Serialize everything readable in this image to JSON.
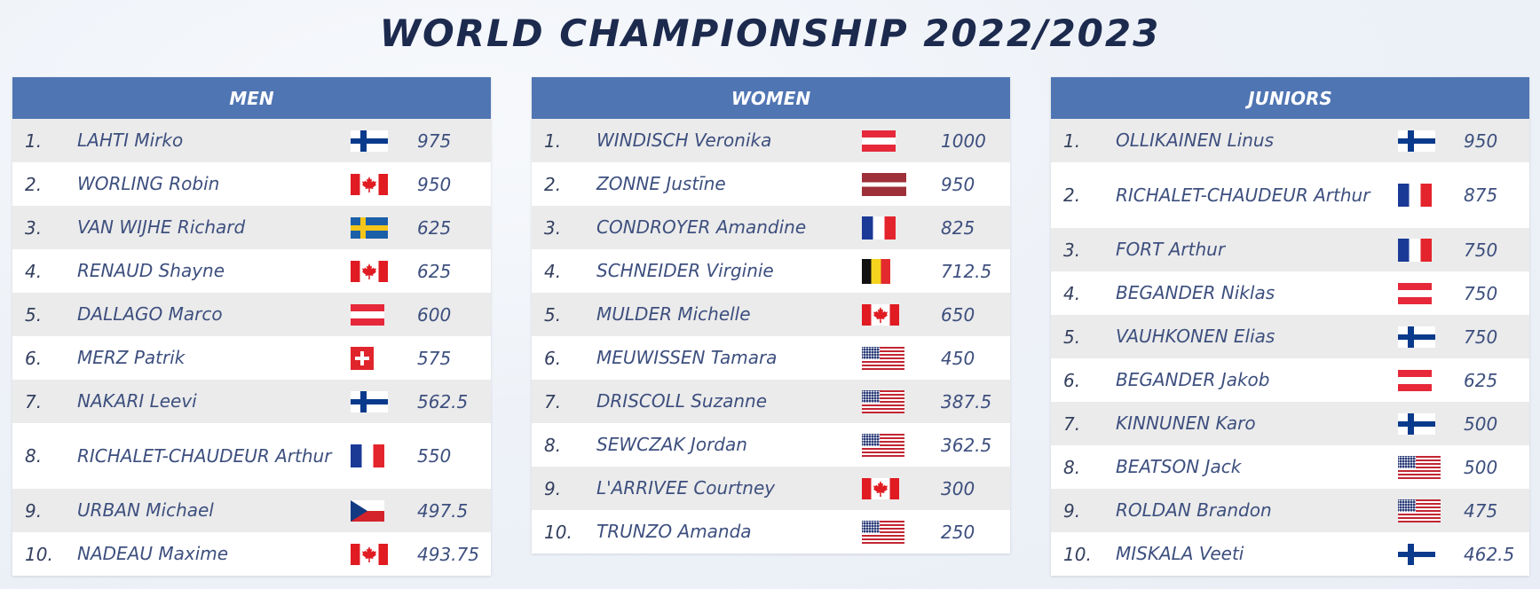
{
  "title": "WORLD CHAMPIONSHIP 2022/2023",
  "panels": {
    "men": {
      "header": "MEN",
      "rows": [
        {
          "rank": "1.",
          "name": "LAHTI Mirko",
          "flag": "fi",
          "points": "975"
        },
        {
          "rank": "2.",
          "name": "WORLING Robin",
          "flag": "ca",
          "points": "950"
        },
        {
          "rank": "3.",
          "name": "VAN WIJHE Richard",
          "flag": "se",
          "points": "625"
        },
        {
          "rank": "4.",
          "name": "RENAUD Shayne",
          "flag": "ca",
          "points": "625"
        },
        {
          "rank": "5.",
          "name": "DALLAGO Marco",
          "flag": "at",
          "points": "600"
        },
        {
          "rank": "6.",
          "name": "MERZ Patrik",
          "flag": "ch",
          "points": "575"
        },
        {
          "rank": "7.",
          "name": "NAKARI Leevi",
          "flag": "fi",
          "points": "562.5"
        },
        {
          "rank": "8.",
          "name": "RICHALET-CHAUDEUR Arthur",
          "flag": "fr",
          "points": "550"
        },
        {
          "rank": "9.",
          "name": "URBAN Michael",
          "flag": "cz",
          "points": "497.5"
        },
        {
          "rank": "10.",
          "name": "NADEAU Maxime",
          "flag": "ca",
          "points": "493.75"
        }
      ]
    },
    "women": {
      "header": "WOMEN",
      "rows": [
        {
          "rank": "1.",
          "name": "WINDISCH Veronika",
          "flag": "at",
          "points": "1000"
        },
        {
          "rank": "2.",
          "name": "ZONNE Justīne",
          "flag": "lv",
          "points": "950"
        },
        {
          "rank": "3.",
          "name": "CONDROYER Amandine",
          "flag": "fr",
          "points": "825"
        },
        {
          "rank": "4.",
          "name": "SCHNEIDER Virginie",
          "flag": "be",
          "points": "712.5"
        },
        {
          "rank": "5.",
          "name": "MULDER Michelle",
          "flag": "ca",
          "points": "650"
        },
        {
          "rank": "6.",
          "name": "MEUWISSEN Tamara",
          "flag": "us",
          "points": "450"
        },
        {
          "rank": "7.",
          "name": "DRISCOLL Suzanne",
          "flag": "us",
          "points": "387.5"
        },
        {
          "rank": "8.",
          "name": "SEWCZAK Jordan",
          "flag": "us",
          "points": "362.5"
        },
        {
          "rank": "9.",
          "name": "L'ARRIVEE Courtney",
          "flag": "ca",
          "points": "300"
        },
        {
          "rank": "10.",
          "name": "TRUNZO Amanda",
          "flag": "us",
          "points": "250"
        }
      ]
    },
    "juniors": {
      "header": "JUNIORS",
      "rows": [
        {
          "rank": "1.",
          "name": "OLLIKAINEN Linus",
          "flag": "fi",
          "points": "950"
        },
        {
          "rank": "2.",
          "name": "RICHALET-CHAUDEUR Arthur",
          "flag": "fr",
          "points": "875"
        },
        {
          "rank": "3.",
          "name": "FORT Arthur",
          "flag": "fr",
          "points": "750"
        },
        {
          "rank": "4.",
          "name": "BEGANDER Niklas",
          "flag": "at",
          "points": "750"
        },
        {
          "rank": "5.",
          "name": "VAUHKONEN Elias",
          "flag": "fi",
          "points": "750"
        },
        {
          "rank": "6.",
          "name": "BEGANDER Jakob",
          "flag": "at",
          "points": "625"
        },
        {
          "rank": "7.",
          "name": "KINNUNEN Karo",
          "flag": "fi",
          "points": "500"
        },
        {
          "rank": "8.",
          "name": "BEATSON Jack",
          "flag": "us",
          "points": "500"
        },
        {
          "rank": "9.",
          "name": "ROLDAN Brandon",
          "flag": "us",
          "points": "475"
        },
        {
          "rank": "10.",
          "name": "MISKALA Veeti",
          "flag": "fi",
          "points": "462.5"
        }
      ]
    }
  },
  "flags": {
    "fi": "finland-flag-icon",
    "ca": "canada-flag-icon",
    "se": "sweden-flag-icon",
    "at": "austria-flag-icon",
    "ch": "switzerland-flag-icon",
    "fr": "france-flag-icon",
    "cz": "czech-republic-flag-icon",
    "lv": "latvia-flag-icon",
    "be": "belgium-flag-icon",
    "us": "usa-flag-icon"
  },
  "colors": {
    "header_bg": "#4f75b3",
    "title": "#1c2a4e",
    "name_text": "#3d4f7e",
    "row_alt": "#ebebeb"
  }
}
